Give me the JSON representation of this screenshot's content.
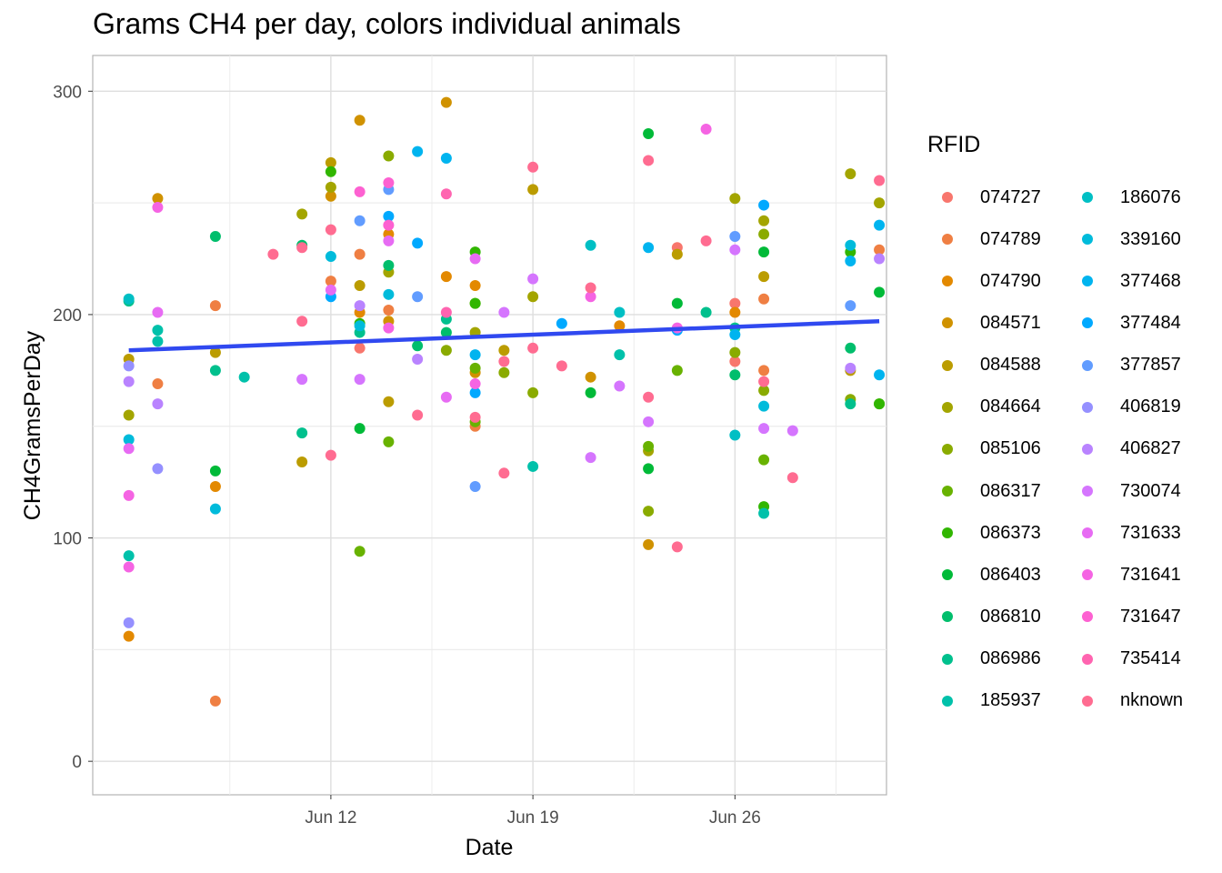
{
  "chart_data": {
    "type": "scatter",
    "title": "Grams CH4 per day, colors individual animals",
    "xlabel": "Date",
    "ylabel": "CH4GramsPerDay",
    "xlim": [
      "2024-06-04T06:00",
      "2024-07-01T18:00"
    ],
    "ylim": [
      -15,
      316
    ],
    "x_ticks": [
      {
        "x": "2024-06-12",
        "label": "Jun 12"
      },
      {
        "x": "2024-06-19",
        "label": "Jun 19"
      },
      {
        "x": "2024-06-26",
        "label": "Jun 26"
      }
    ],
    "y_ticks": [
      0,
      100,
      200,
      300
    ],
    "grid": true,
    "legend_title": "RFID",
    "legend_position": "right",
    "trend_line": {
      "color": "#3049f0",
      "x": [
        "2024-06-05",
        "2024-07-01"
      ],
      "y": [
        184,
        197
      ]
    },
    "series": [
      {
        "name": "074727",
        "color": "#f8766d",
        "points": [
          [
            "2024-06-13",
            185
          ],
          [
            "2024-06-24",
            230
          ],
          [
            "2024-06-26",
            205
          ],
          [
            "2024-06-26",
            179
          ]
        ]
      },
      {
        "name": "074789",
        "color": "#ef7f43",
        "points": [
          [
            "2024-06-06",
            169
          ],
          [
            "2024-06-08",
            27
          ],
          [
            "2024-06-08",
            204
          ],
          [
            "2024-06-12",
            215
          ],
          [
            "2024-06-13",
            227
          ],
          [
            "2024-06-14",
            202
          ],
          [
            "2024-06-17",
            150
          ],
          [
            "2024-06-27",
            207
          ],
          [
            "2024-06-27",
            175
          ],
          [
            "2024-07-01",
            229
          ]
        ]
      },
      {
        "name": "074790",
        "color": "#e38900",
        "points": [
          [
            "2024-06-05",
            56
          ],
          [
            "2024-06-08",
            123
          ],
          [
            "2024-06-13",
            201
          ],
          [
            "2024-06-14",
            236
          ],
          [
            "2024-06-16",
            217
          ],
          [
            "2024-06-17",
            213
          ],
          [
            "2024-06-22",
            195
          ],
          [
            "2024-06-26",
            201
          ]
        ]
      },
      {
        "name": "084571",
        "color": "#d09200",
        "points": [
          [
            "2024-06-06",
            252
          ],
          [
            "2024-06-12",
            253
          ],
          [
            "2024-06-13",
            287
          ],
          [
            "2024-06-14",
            197
          ],
          [
            "2024-06-16",
            295
          ],
          [
            "2024-06-17",
            174
          ],
          [
            "2024-06-21",
            172
          ],
          [
            "2024-06-23",
            97
          ]
        ]
      },
      {
        "name": "084588",
        "color": "#bb9c00",
        "points": [
          [
            "2024-06-05",
            180
          ],
          [
            "2024-06-08",
            183
          ],
          [
            "2024-06-11",
            134
          ],
          [
            "2024-06-12",
            268
          ],
          [
            "2024-06-13",
            213
          ],
          [
            "2024-06-14",
            161
          ],
          [
            "2024-06-18",
            184
          ],
          [
            "2024-06-19",
            256
          ],
          [
            "2024-06-24",
            227
          ],
          [
            "2024-06-27",
            217
          ],
          [
            "2024-06-30",
            175
          ]
        ]
      },
      {
        "name": "084664",
        "color": "#a3a500",
        "points": [
          [
            "2024-06-05",
            155
          ],
          [
            "2024-06-11",
            245
          ],
          [
            "2024-06-12",
            257
          ],
          [
            "2024-06-14",
            219
          ],
          [
            "2024-06-17",
            192
          ],
          [
            "2024-06-19",
            208
          ],
          [
            "2024-06-23",
            139
          ],
          [
            "2024-06-26",
            252
          ],
          [
            "2024-06-27",
            242
          ],
          [
            "2024-06-30",
            263
          ],
          [
            "2024-07-01",
            250
          ]
        ]
      },
      {
        "name": "085106",
        "color": "#8aab00",
        "points": [
          [
            "2024-06-14",
            271
          ],
          [
            "2024-06-16",
            184
          ],
          [
            "2024-06-17",
            205
          ],
          [
            "2024-06-18",
            174
          ],
          [
            "2024-06-19",
            165
          ],
          [
            "2024-06-23",
            112
          ],
          [
            "2024-06-26",
            183
          ],
          [
            "2024-06-27",
            236
          ],
          [
            "2024-06-27",
            166
          ],
          [
            "2024-06-30",
            162
          ]
        ]
      },
      {
        "name": "086317",
        "color": "#68b200",
        "points": [
          [
            "2024-06-13",
            94
          ],
          [
            "2024-06-14",
            143
          ],
          [
            "2024-06-17",
            152
          ],
          [
            "2024-06-17",
            176
          ],
          [
            "2024-06-23",
            141
          ],
          [
            "2024-06-24",
            175
          ],
          [
            "2024-06-27",
            135
          ],
          [
            "2024-07-01",
            160
          ]
        ]
      },
      {
        "name": "086373",
        "color": "#31b600",
        "points": [
          [
            "2024-06-12",
            264
          ],
          [
            "2024-06-13",
            196
          ],
          [
            "2024-06-17",
            228
          ],
          [
            "2024-06-17",
            205
          ],
          [
            "2024-06-27",
            114
          ],
          [
            "2024-06-30",
            228
          ],
          [
            "2024-07-01",
            160
          ]
        ]
      },
      {
        "name": "086403",
        "color": "#00ba38",
        "points": [
          [
            "2024-06-08",
            130
          ],
          [
            "2024-06-13",
            149
          ],
          [
            "2024-06-21",
            165
          ],
          [
            "2024-06-23",
            281
          ],
          [
            "2024-06-23",
            131
          ],
          [
            "2024-06-24",
            205
          ],
          [
            "2024-06-27",
            228
          ],
          [
            "2024-07-01",
            210
          ]
        ]
      },
      {
        "name": "086810",
        "color": "#00be6c",
        "points": [
          [
            "2024-06-08",
            235
          ],
          [
            "2024-06-11",
            231
          ],
          [
            "2024-06-14",
            222
          ],
          [
            "2024-06-15",
            186
          ],
          [
            "2024-06-16",
            192
          ],
          [
            "2024-06-26",
            173
          ],
          [
            "2024-06-30",
            185
          ]
        ]
      },
      {
        "name": "086986",
        "color": "#00c08d",
        "points": [
          [
            "2024-06-05",
            206
          ],
          [
            "2024-06-08",
            175
          ],
          [
            "2024-06-11",
            147
          ],
          [
            "2024-06-13",
            192
          ],
          [
            "2024-06-16",
            198
          ],
          [
            "2024-06-25",
            201
          ],
          [
            "2024-06-26",
            194
          ],
          [
            "2024-06-30",
            160
          ]
        ]
      },
      {
        "name": "185937",
        "color": "#00c1aa",
        "points": [
          [
            "2024-06-05",
            92
          ],
          [
            "2024-06-06",
            193
          ],
          [
            "2024-06-06",
            188
          ],
          [
            "2024-06-09",
            172
          ],
          [
            "2024-06-19",
            132
          ],
          [
            "2024-06-22",
            182
          ],
          [
            "2024-06-27",
            111
          ]
        ]
      },
      {
        "name": "186076",
        "color": "#00bfc4",
        "points": [
          [
            "2024-06-05",
            207
          ],
          [
            "2024-06-21",
            231
          ],
          [
            "2024-06-22",
            201
          ],
          [
            "2024-06-26",
            146
          ]
        ]
      },
      {
        "name": "339160",
        "color": "#00bbdb",
        "points": [
          [
            "2024-06-05",
            144
          ],
          [
            "2024-06-08",
            113
          ],
          [
            "2024-06-12",
            226
          ],
          [
            "2024-06-13",
            195
          ],
          [
            "2024-06-14",
            209
          ],
          [
            "2024-06-27",
            159
          ],
          [
            "2024-06-30",
            231
          ]
        ]
      },
      {
        "name": "377468",
        "color": "#00b4ef",
        "points": [
          [
            "2024-06-15",
            273
          ],
          [
            "2024-06-16",
            270
          ],
          [
            "2024-06-17",
            182
          ],
          [
            "2024-06-23",
            230
          ],
          [
            "2024-06-26",
            191
          ],
          [
            "2024-06-30",
            224
          ],
          [
            "2024-07-01",
            240
          ],
          [
            "2024-07-01",
            173
          ]
        ]
      },
      {
        "name": "377484",
        "color": "#00a9ff",
        "points": [
          [
            "2024-06-12",
            208
          ],
          [
            "2024-06-14",
            244
          ],
          [
            "2024-06-15",
            232
          ],
          [
            "2024-06-17",
            165
          ],
          [
            "2024-06-20",
            196
          ],
          [
            "2024-06-24",
            193
          ],
          [
            "2024-06-27",
            249
          ]
        ]
      },
      {
        "name": "377857",
        "color": "#619cff",
        "points": [
          [
            "2024-06-13",
            242
          ],
          [
            "2024-06-14",
            256
          ],
          [
            "2024-06-15",
            208
          ],
          [
            "2024-06-17",
            123
          ],
          [
            "2024-06-26",
            235
          ],
          [
            "2024-06-30",
            204
          ]
        ]
      },
      {
        "name": "406819",
        "color": "#9590ff",
        "points": [
          [
            "2024-06-05",
            62
          ],
          [
            "2024-06-05",
            177
          ],
          [
            "2024-06-06",
            131
          ]
        ]
      },
      {
        "name": "406827",
        "color": "#b983ff",
        "points": [
          [
            "2024-06-05",
            170
          ],
          [
            "2024-06-06",
            160
          ],
          [
            "2024-06-13",
            204
          ],
          [
            "2024-06-15",
            180
          ],
          [
            "2024-06-30",
            176
          ],
          [
            "2024-07-01",
            225
          ]
        ]
      },
      {
        "name": "730074",
        "color": "#d575fe",
        "points": [
          [
            "2024-06-11",
            171
          ],
          [
            "2024-06-13",
            171
          ],
          [
            "2024-06-18",
            201
          ],
          [
            "2024-06-19",
            216
          ],
          [
            "2024-06-21",
            136
          ],
          [
            "2024-06-22",
            168
          ],
          [
            "2024-06-23",
            152
          ],
          [
            "2024-06-26",
            229
          ],
          [
            "2024-06-27",
            149
          ],
          [
            "2024-06-28",
            148
          ]
        ]
      },
      {
        "name": "731633",
        "color": "#e76bf3",
        "points": [
          [
            "2024-06-05",
            140
          ],
          [
            "2024-06-06",
            201
          ],
          [
            "2024-06-12",
            211
          ],
          [
            "2024-06-14",
            233
          ],
          [
            "2024-06-16",
            163
          ],
          [
            "2024-06-17",
            225
          ]
        ]
      },
      {
        "name": "731641",
        "color": "#f564e3",
        "points": [
          [
            "2024-06-05",
            119
          ],
          [
            "2024-06-05",
            87
          ],
          [
            "2024-06-06",
            248
          ],
          [
            "2024-06-14",
            194
          ],
          [
            "2024-06-17",
            169
          ],
          [
            "2024-06-21",
            208
          ],
          [
            "2024-06-24",
            194
          ],
          [
            "2024-06-25",
            283
          ]
        ]
      },
      {
        "name": "731647",
        "color": "#fd61d1",
        "points": [
          [
            "2024-06-13",
            255
          ],
          [
            "2024-06-14",
            240
          ],
          [
            "2024-06-14",
            259
          ]
        ]
      },
      {
        "name": "735414",
        "color": "#ff64b0",
        "points": [
          [
            "2024-06-16",
            254
          ],
          [
            "2024-06-16",
            201
          ]
        ]
      },
      {
        "name": "nknown",
        "color": "#ff6c91",
        "points": [
          [
            "2024-06-10",
            227
          ],
          [
            "2024-06-11",
            230
          ],
          [
            "2024-06-11",
            197
          ],
          [
            "2024-06-12",
            238
          ],
          [
            "2024-06-12",
            137
          ],
          [
            "2024-06-15",
            155
          ],
          [
            "2024-06-17",
            154
          ],
          [
            "2024-06-18",
            129
          ],
          [
            "2024-06-18",
            179
          ],
          [
            "2024-06-19",
            266
          ],
          [
            "2024-06-19",
            185
          ],
          [
            "2024-06-20",
            177
          ],
          [
            "2024-06-21",
            212
          ],
          [
            "2024-06-23",
            269
          ],
          [
            "2024-06-23",
            163
          ],
          [
            "2024-06-24",
            96
          ],
          [
            "2024-06-25",
            233
          ],
          [
            "2024-06-27",
            170
          ],
          [
            "2024-06-28",
            127
          ],
          [
            "2024-07-01",
            260
          ]
        ]
      }
    ]
  }
}
